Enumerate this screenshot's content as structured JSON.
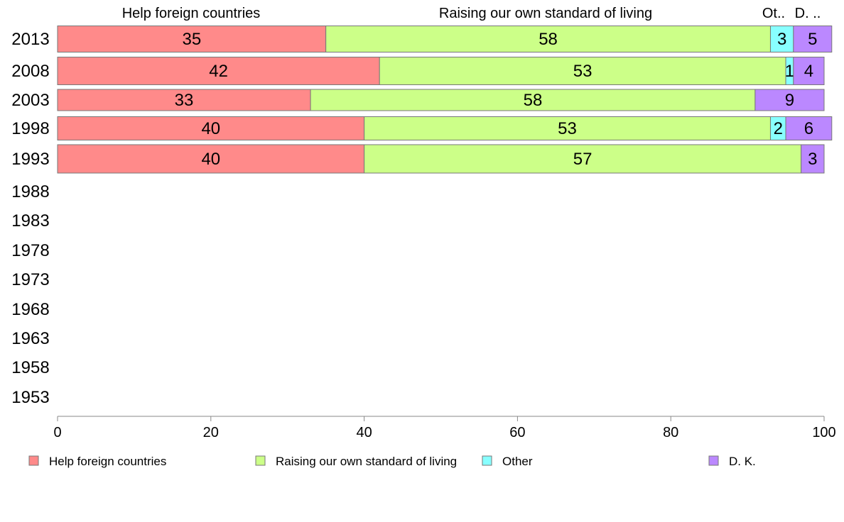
{
  "chart_data": {
    "type": "bar",
    "orientation": "horizontal",
    "stacked": true,
    "column_headers": [
      "Help foreign countries",
      "Raising our own standard of living",
      "Ot..",
      "D. .."
    ],
    "categories": [
      "2013",
      "2008",
      "2003",
      "1998",
      "1993",
      "1988",
      "1983",
      "1978",
      "1973",
      "1968",
      "1963",
      "1958",
      "1953"
    ],
    "series": [
      {
        "name": "Help foreign countries",
        "color": "#ff8a8a",
        "values": [
          35,
          42,
          33,
          40,
          40,
          null,
          null,
          null,
          null,
          null,
          null,
          null,
          null
        ]
      },
      {
        "name": "Raising our own standard of living",
        "color": "#ccff88",
        "values": [
          58,
          53,
          58,
          53,
          57,
          null,
          null,
          null,
          null,
          null,
          null,
          null,
          null
        ]
      },
      {
        "name": "Other",
        "color": "#88ffff",
        "values": [
          3,
          1,
          null,
          2,
          null,
          null,
          null,
          null,
          null,
          null,
          null,
          null,
          null
        ]
      },
      {
        "name": "D. K.",
        "color": "#bb88ff",
        "values": [
          5,
          4,
          9,
          6,
          3,
          null,
          null,
          null,
          null,
          null,
          null,
          null,
          null
        ]
      }
    ],
    "xlim": [
      0,
      100
    ],
    "xticks": [
      0,
      20,
      40,
      60,
      80,
      100
    ],
    "grid": false,
    "legend_position": "bottom"
  }
}
